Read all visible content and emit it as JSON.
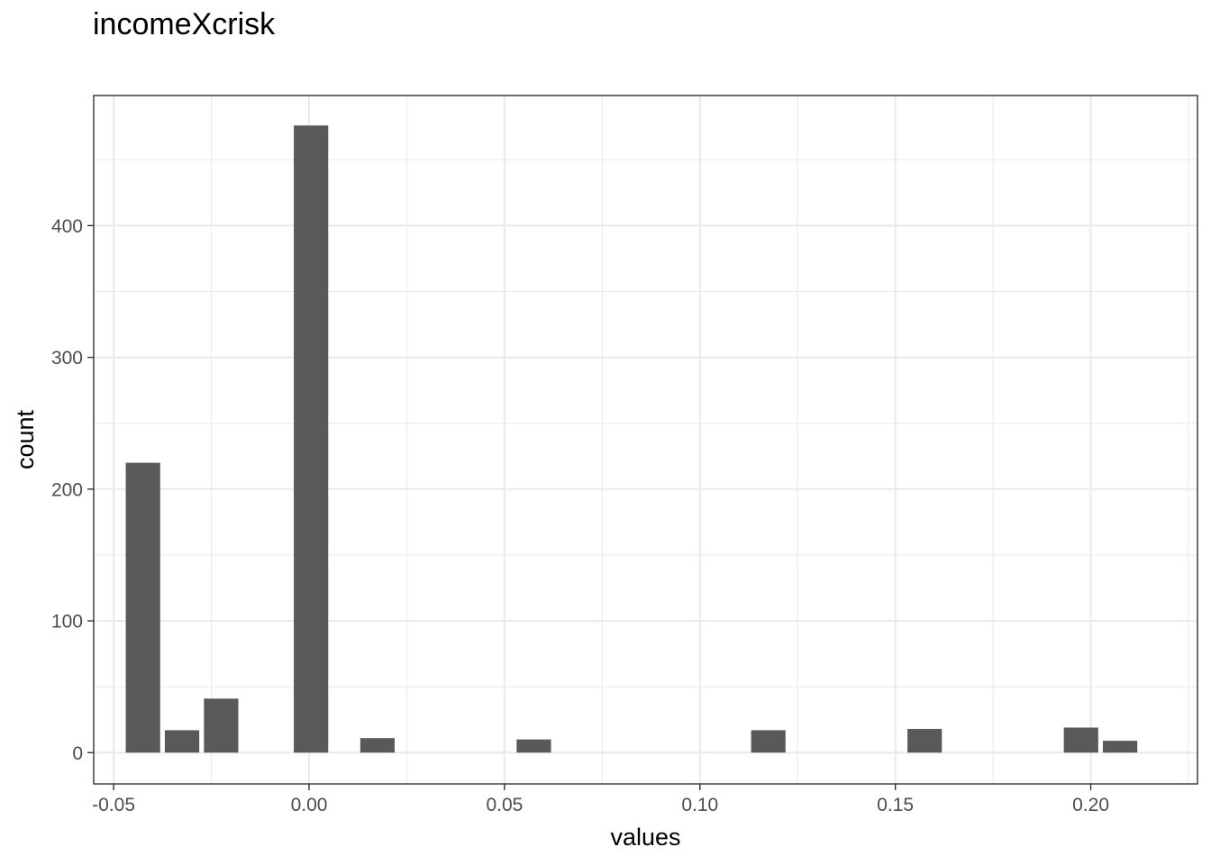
{
  "chart_data": {
    "type": "bar",
    "title": "incomeXcrisk",
    "xlabel": "values",
    "ylabel": "count",
    "xlim": [
      -0.0551,
      0.2273
    ],
    "ylim": [
      -23.75,
      498.75
    ],
    "x_ticks": [
      -0.05,
      0.0,
      0.05,
      0.1,
      0.15,
      0.2
    ],
    "x_tick_labels": [
      "-0.05",
      "0.00",
      "0.05",
      "0.10",
      "0.15",
      "0.20"
    ],
    "y_ticks": [
      0,
      100,
      200,
      300,
      400
    ],
    "y_tick_labels": [
      "0",
      "100",
      "200",
      "300",
      "400"
    ],
    "grid": true,
    "bin_width": 0.01,
    "bars": [
      {
        "x": -0.0425,
        "count": 220
      },
      {
        "x": -0.0325,
        "count": 17
      },
      {
        "x": -0.0225,
        "count": 41
      },
      {
        "x": 0.0005,
        "count": 476
      },
      {
        "x": 0.0175,
        "count": 11
      },
      {
        "x": 0.0575,
        "count": 10
      },
      {
        "x": 0.1175,
        "count": 17
      },
      {
        "x": 0.1575,
        "count": 18
      },
      {
        "x": 0.1975,
        "count": 19
      },
      {
        "x": 0.2075,
        "count": 9
      }
    ],
    "colors": {
      "bar": "#595959",
      "grid": "#ebebeb",
      "panel_border": "#333333",
      "tick_text": "#4d4d4d"
    }
  }
}
